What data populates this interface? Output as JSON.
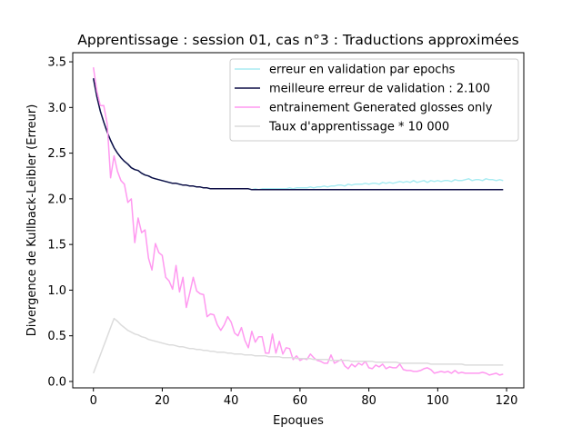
{
  "chart_data": {
    "type": "line",
    "title": "Apprentissage : session 01, cas n°3 : Traductions approximées",
    "xlabel": "Epoques",
    "ylabel": "Divergence de Kullback-Leibler (Erreur)",
    "xlim": [
      -6,
      125
    ],
    "ylim": [
      -0.07,
      3.6
    ],
    "xticks": [
      0,
      20,
      40,
      60,
      80,
      100,
      120
    ],
    "yticks": [
      0.0,
      0.5,
      1.0,
      1.5,
      2.0,
      2.5,
      3.0,
      3.5
    ],
    "grid": false,
    "legend_position": "top-right",
    "x": [
      0,
      1,
      2,
      3,
      4,
      5,
      6,
      7,
      8,
      9,
      10,
      11,
      12,
      13,
      14,
      15,
      16,
      17,
      18,
      19,
      20,
      21,
      22,
      23,
      24,
      25,
      26,
      27,
      28,
      29,
      30,
      31,
      32,
      33,
      34,
      35,
      36,
      37,
      38,
      39,
      40,
      41,
      42,
      43,
      44,
      45,
      46,
      47,
      48,
      49,
      50,
      51,
      52,
      53,
      54,
      55,
      56,
      57,
      58,
      59,
      60,
      61,
      62,
      63,
      64,
      65,
      66,
      67,
      68,
      69,
      70,
      71,
      72,
      73,
      74,
      75,
      76,
      77,
      78,
      79,
      80,
      81,
      82,
      83,
      84,
      85,
      86,
      87,
      88,
      89,
      90,
      91,
      92,
      93,
      94,
      95,
      96,
      97,
      98,
      99,
      100,
      101,
      102,
      103,
      104,
      105,
      106,
      107,
      108,
      109,
      110,
      111,
      112,
      113,
      114,
      115,
      116,
      117,
      118,
      119
    ],
    "series": [
      {
        "name": "erreur en validation par epochs",
        "color": "#a8ecf2",
        "values": [
          3.32,
          3.12,
          2.96,
          2.84,
          2.73,
          2.64,
          2.56,
          2.5,
          2.45,
          2.41,
          2.38,
          2.34,
          2.32,
          2.31,
          2.28,
          2.26,
          2.25,
          2.23,
          2.22,
          2.21,
          2.2,
          2.19,
          2.18,
          2.17,
          2.17,
          2.16,
          2.15,
          2.15,
          2.14,
          2.14,
          2.13,
          2.13,
          2.12,
          2.12,
          2.11,
          2.11,
          2.11,
          2.11,
          2.11,
          2.11,
          2.11,
          2.11,
          2.11,
          2.11,
          2.11,
          2.11,
          2.1,
          2.11,
          2.1,
          2.11,
          2.11,
          2.11,
          2.11,
          2.11,
          2.11,
          2.11,
          2.11,
          2.12,
          2.11,
          2.12,
          2.12,
          2.12,
          2.12,
          2.13,
          2.12,
          2.13,
          2.13,
          2.14,
          2.13,
          2.14,
          2.14,
          2.15,
          2.15,
          2.14,
          2.16,
          2.15,
          2.16,
          2.16,
          2.16,
          2.17,
          2.16,
          2.17,
          2.17,
          2.16,
          2.18,
          2.17,
          2.18,
          2.17,
          2.18,
          2.19,
          2.18,
          2.19,
          2.18,
          2.2,
          2.18,
          2.19,
          2.2,
          2.18,
          2.2,
          2.19,
          2.2,
          2.19,
          2.2,
          2.2,
          2.19,
          2.21,
          2.2,
          2.2,
          2.21,
          2.22,
          2.2,
          2.21,
          2.21,
          2.2,
          2.22,
          2.21,
          2.21,
          2.2,
          2.21,
          2.2
        ]
      },
      {
        "name": "meilleure erreur de validation : 2.100",
        "color": "#0d0d45",
        "values": [
          3.32,
          3.12,
          2.96,
          2.84,
          2.73,
          2.64,
          2.56,
          2.5,
          2.45,
          2.41,
          2.38,
          2.34,
          2.32,
          2.31,
          2.28,
          2.26,
          2.25,
          2.23,
          2.22,
          2.21,
          2.2,
          2.19,
          2.18,
          2.17,
          2.17,
          2.16,
          2.15,
          2.15,
          2.14,
          2.14,
          2.13,
          2.13,
          2.12,
          2.12,
          2.11,
          2.11,
          2.11,
          2.11,
          2.11,
          2.11,
          2.11,
          2.11,
          2.11,
          2.11,
          2.11,
          2.11,
          2.1,
          2.1,
          2.1,
          2.1,
          2.1,
          2.1,
          2.1,
          2.1,
          2.1,
          2.1,
          2.1,
          2.1,
          2.1,
          2.1,
          2.1,
          2.1,
          2.1,
          2.1,
          2.1,
          2.1,
          2.1,
          2.1,
          2.1,
          2.1,
          2.1,
          2.1,
          2.1,
          2.1,
          2.1,
          2.1,
          2.1,
          2.1,
          2.1,
          2.1,
          2.1,
          2.1,
          2.1,
          2.1,
          2.1,
          2.1,
          2.1,
          2.1,
          2.1,
          2.1,
          2.1,
          2.1,
          2.1,
          2.1,
          2.1,
          2.1,
          2.1,
          2.1,
          2.1,
          2.1,
          2.1,
          2.1,
          2.1,
          2.1,
          2.1,
          2.1,
          2.1,
          2.1,
          2.1,
          2.1,
          2.1,
          2.1,
          2.1,
          2.1,
          2.1,
          2.1,
          2.1,
          2.1,
          2.1,
          2.1
        ]
      },
      {
        "name": "entrainement Generated glosses only",
        "color": "#ff99f0",
        "values": [
          3.44,
          3.18,
          3.02,
          3.02,
          2.82,
          2.23,
          2.47,
          2.3,
          2.2,
          2.16,
          1.96,
          2.0,
          1.52,
          1.79,
          1.63,
          1.66,
          1.35,
          1.22,
          1.51,
          1.41,
          1.38,
          1.14,
          1.1,
          1.01,
          1.27,
          0.98,
          1.14,
          0.81,
          0.97,
          1.14,
          0.99,
          0.96,
          0.95,
          0.71,
          0.74,
          0.73,
          0.62,
          0.56,
          0.62,
          0.71,
          0.65,
          0.53,
          0.5,
          0.59,
          0.45,
          0.37,
          0.55,
          0.43,
          0.49,
          0.49,
          0.31,
          0.31,
          0.52,
          0.31,
          0.44,
          0.3,
          0.37,
          0.36,
          0.24,
          0.28,
          0.23,
          0.25,
          0.24,
          0.3,
          0.26,
          0.23,
          0.22,
          0.2,
          0.2,
          0.29,
          0.2,
          0.22,
          0.24,
          0.17,
          0.14,
          0.19,
          0.16,
          0.2,
          0.18,
          0.22,
          0.15,
          0.14,
          0.18,
          0.16,
          0.19,
          0.14,
          0.16,
          0.15,
          0.15,
          0.19,
          0.13,
          0.12,
          0.12,
          0.11,
          0.11,
          0.12,
          0.14,
          0.15,
          0.13,
          0.09,
          0.1,
          0.11,
          0.1,
          0.11,
          0.09,
          0.12,
          0.09,
          0.1,
          0.09,
          0.09,
          0.09,
          0.09,
          0.09,
          0.1,
          0.09,
          0.07,
          0.08,
          0.09,
          0.07,
          0.08
        ]
      },
      {
        "name": "Taux d'apprentissage * 10 000",
        "color": "#dcdcdc",
        "values": [
          0.09,
          0.19,
          0.29,
          0.39,
          0.49,
          0.59,
          0.69,
          0.66,
          0.62,
          0.59,
          0.56,
          0.54,
          0.52,
          0.51,
          0.49,
          0.48,
          0.46,
          0.45,
          0.44,
          0.43,
          0.42,
          0.41,
          0.4,
          0.4,
          0.39,
          0.38,
          0.38,
          0.37,
          0.36,
          0.36,
          0.35,
          0.35,
          0.34,
          0.34,
          0.33,
          0.33,
          0.32,
          0.32,
          0.32,
          0.31,
          0.31,
          0.3,
          0.3,
          0.3,
          0.29,
          0.29,
          0.29,
          0.28,
          0.28,
          0.28,
          0.28,
          0.27,
          0.27,
          0.27,
          0.27,
          0.26,
          0.26,
          0.26,
          0.26,
          0.25,
          0.25,
          0.25,
          0.25,
          0.25,
          0.24,
          0.24,
          0.24,
          0.24,
          0.24,
          0.23,
          0.23,
          0.23,
          0.23,
          0.23,
          0.23,
          0.22,
          0.22,
          0.22,
          0.22,
          0.22,
          0.22,
          0.22,
          0.21,
          0.21,
          0.21,
          0.21,
          0.21,
          0.21,
          0.21,
          0.2,
          0.2,
          0.2,
          0.2,
          0.2,
          0.2,
          0.2,
          0.2,
          0.2,
          0.19,
          0.19,
          0.19,
          0.19,
          0.19,
          0.19,
          0.19,
          0.19,
          0.19,
          0.19,
          0.18,
          0.18,
          0.18,
          0.18,
          0.18,
          0.18,
          0.18,
          0.18,
          0.18,
          0.18,
          0.18,
          0.18
        ]
      }
    ]
  }
}
